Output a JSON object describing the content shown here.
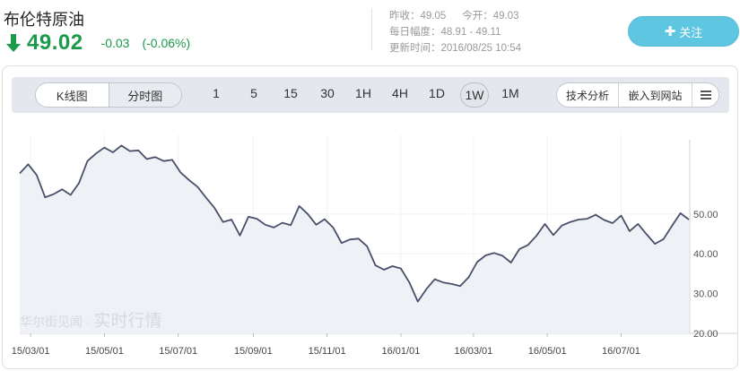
{
  "header": {
    "title": "布伦特原油",
    "price": "49.02",
    "change": "-0.03",
    "change_pct": "(-0.06%)",
    "prev_close_label": "昨收：",
    "prev_close": "49.05",
    "open_label": "今开：",
    "open": "49.03",
    "range_label": "每日幅度：",
    "range": "48.91 - 49.11",
    "updated_label": "更新时间：",
    "updated": "2016/08/25 10:54",
    "follow_label": "关注",
    "follow_icon": "plus-icon",
    "trend_icon": "arrow-down-icon",
    "down_color": "#1a9a4a",
    "accent_color": "#5ec6e0"
  },
  "toolbar": {
    "chart_types": [
      "K线图",
      "分时图"
    ],
    "periods": [
      "1",
      "5",
      "15",
      "30",
      "1H",
      "4H",
      "1D",
      "1W",
      "1M"
    ],
    "active_period": "1W",
    "tech_analysis": "技术分析",
    "embed": "嵌入到网站",
    "menu_icon": "list-icon"
  },
  "watermark": {
    "brand": "华尔街见闻",
    "sep": " · ",
    "text": "实时行情"
  },
  "chart_data": {
    "type": "line",
    "x": [
      "15/02/20",
      "15/02/27",
      "15/03/06",
      "15/03/13",
      "15/03/20",
      "15/03/27",
      "15/04/03",
      "15/04/10",
      "15/04/17",
      "15/04/24",
      "15/05/01",
      "15/05/08",
      "15/05/15",
      "15/05/22",
      "15/05/29",
      "15/06/05",
      "15/06/12",
      "15/06/19",
      "15/06/26",
      "15/07/03",
      "15/07/10",
      "15/07/17",
      "15/07/24",
      "15/07/31",
      "15/08/07",
      "15/08/14",
      "15/08/21",
      "15/08/28",
      "15/09/04",
      "15/09/11",
      "15/09/18",
      "15/09/25",
      "15/10/02",
      "15/10/09",
      "15/10/16",
      "15/10/23",
      "15/10/30",
      "15/11/06",
      "15/11/13",
      "15/11/20",
      "15/11/27",
      "15/12/04",
      "15/12/11",
      "15/12/18",
      "15/12/25",
      "16/01/01",
      "16/01/08",
      "16/01/15",
      "16/01/22",
      "16/01/29",
      "16/02/05",
      "16/02/12",
      "16/02/19",
      "16/02/26",
      "16/03/04",
      "16/03/11",
      "16/03/18",
      "16/03/25",
      "16/04/01",
      "16/04/08",
      "16/04/15",
      "16/04/22",
      "16/04/29",
      "16/05/06",
      "16/05/13",
      "16/05/20",
      "16/05/27",
      "16/06/03",
      "16/06/10",
      "16/06/17",
      "16/06/24",
      "16/07/01",
      "16/07/08",
      "16/07/15",
      "16/07/22",
      "16/07/29",
      "16/08/05",
      "16/08/12",
      "16/08/19",
      "16/08/26"
    ],
    "values": [
      60.2,
      62.5,
      59.8,
      54.2,
      55.0,
      56.2,
      54.8,
      57.8,
      63.3,
      65.2,
      66.7,
      65.5,
      67.2,
      65.8,
      66.0,
      63.8,
      64.3,
      63.3,
      63.6,
      60.4,
      58.5,
      56.8,
      54.1,
      51.5,
      48.0,
      48.6,
      44.6,
      49.3,
      48.8,
      47.3,
      46.6,
      47.8,
      47.2,
      52.0,
      50.0,
      47.3,
      48.7,
      46.6,
      42.7,
      43.6,
      43.8,
      41.9,
      37.1,
      36.0,
      36.9,
      36.3,
      32.8,
      28.0,
      31.1,
      33.6,
      32.8,
      32.4,
      31.9,
      34.1,
      37.9,
      39.6,
      40.2,
      39.5,
      37.8,
      41.2,
      42.2,
      44.5,
      47.5,
      44.7,
      47.1,
      48.0,
      48.6,
      48.8,
      49.8,
      48.5,
      47.7,
      49.6,
      45.7,
      47.5,
      44.9,
      42.5,
      43.7,
      47.0,
      50.2,
      48.6
    ],
    "ylim": [
      20,
      70
    ],
    "yticks": [
      "20.00",
      "30.00",
      "40.00",
      "50.00"
    ],
    "xticks": [
      "15/03/01",
      "15/05/01",
      "15/07/01",
      "15/09/01",
      "15/11/01",
      "16/01/01",
      "16/03/01",
      "16/05/01",
      "16/07/01"
    ],
    "line_color": "#4a4f6a",
    "fill_color": "#eef1f6",
    "grid": true
  }
}
